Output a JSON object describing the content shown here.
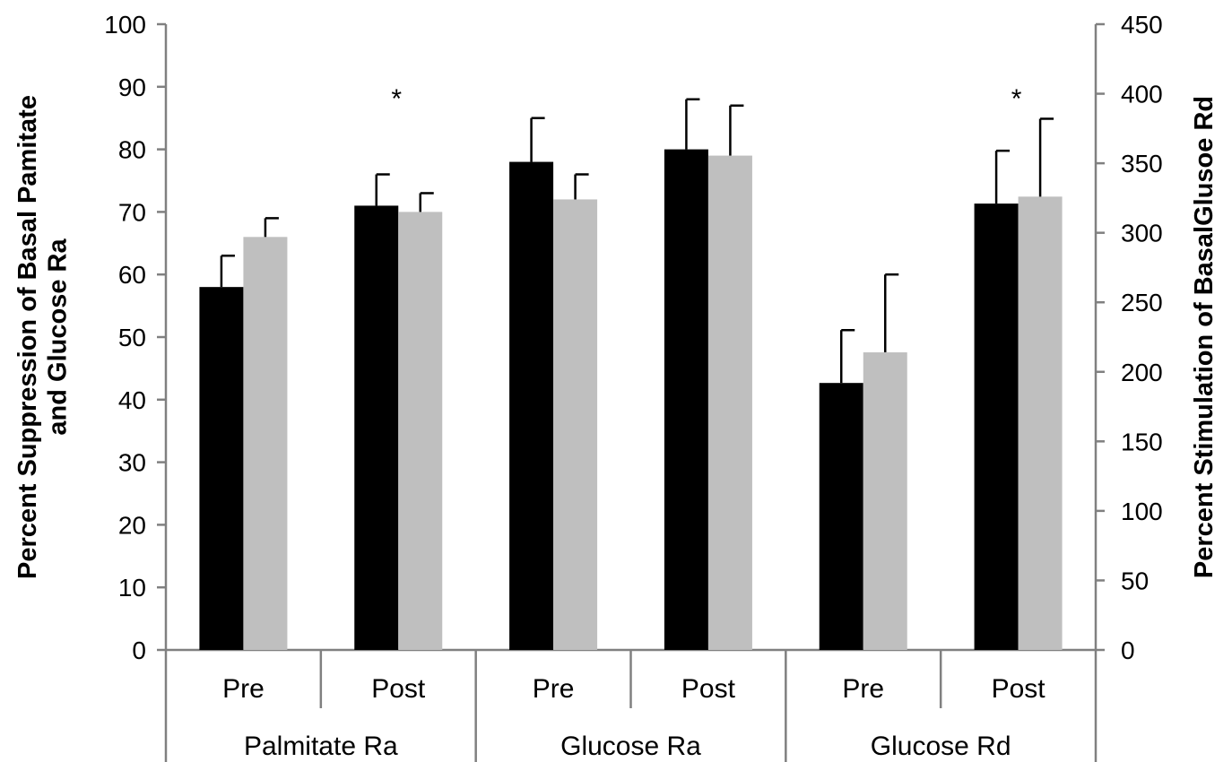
{
  "chart_data": {
    "type": "bar",
    "title": "",
    "ylabel_left": [
      "Percent Suppression of Basal Pamitate",
      "and Glucose Ra"
    ],
    "ylabel_right": "Percent Stimulation of BasalGlusoe Rd",
    "ylim_left": [
      0,
      100
    ],
    "yticks_left": [
      0,
      10,
      20,
      30,
      40,
      50,
      60,
      70,
      80,
      90,
      100
    ],
    "ylim_right": [
      0,
      450
    ],
    "yticks_right": [
      0,
      50,
      100,
      150,
      200,
      250,
      300,
      350,
      400,
      450
    ],
    "groups": [
      {
        "label": "Palmitate Ra",
        "axis": "left",
        "subcategories": [
          "Pre",
          "Post"
        ]
      },
      {
        "label": "Glucose Ra",
        "axis": "left",
        "subcategories": [
          "Pre",
          "Post"
        ]
      },
      {
        "label": "Glucose Rd",
        "axis": "right",
        "subcategories": [
          "Pre",
          "Post"
        ]
      }
    ],
    "series": [
      {
        "color": "#000000",
        "values": [
          58,
          71,
          78,
          80,
          192,
          321
        ],
        "errors": [
          5,
          5,
          7,
          8,
          38,
          38
        ]
      },
      {
        "color": "#bfbfbf",
        "values": [
          66,
          70,
          72,
          79,
          214,
          326
        ],
        "errors": [
          3,
          3,
          4,
          8,
          56,
          56
        ]
      }
    ],
    "annotations": [
      {
        "text": "*",
        "group_index": 0,
        "sub_index": 1
      },
      {
        "text": "*",
        "group_index": 2,
        "sub_index": 1
      }
    ]
  }
}
